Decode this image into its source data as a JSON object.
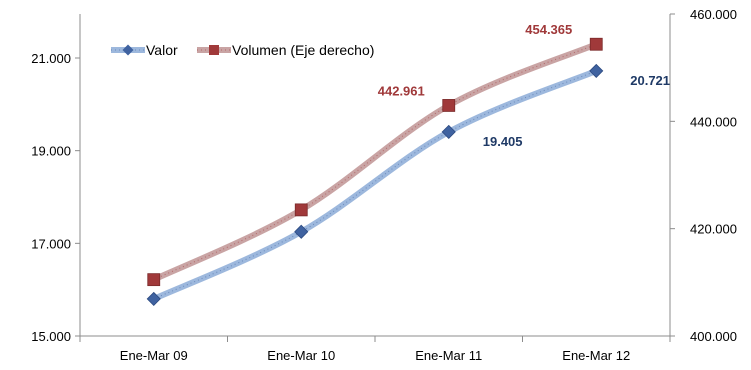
{
  "chart_data": {
    "type": "line",
    "categories": [
      "Ene-Mar 09",
      "Ene-Mar 10",
      "Ene-Mar 11",
      "Ene-Mar 12"
    ],
    "series": [
      {
        "name": "Valor",
        "axis": "left",
        "color": "#3f62a0",
        "line_color": "#9db8dd",
        "marker": "diamond",
        "values": [
          15800,
          17250,
          19405,
          20721
        ],
        "labels": [
          "",
          "",
          "19.405",
          "20.721"
        ]
      },
      {
        "name": "Volumen (Eje derecho)",
        "axis": "right",
        "color": "#a0393a",
        "line_color": "#c9a4a4",
        "marker": "square",
        "values": [
          410500,
          423500,
          442961,
          454365
        ],
        "labels": [
          "",
          "",
          "442.961",
          "454.365"
        ]
      }
    ],
    "y_left": {
      "min": 15000,
      "max": 21000,
      "ticks": [
        15000,
        17000,
        19000,
        21000
      ],
      "tick_labels": [
        "15.000",
        "17.000",
        "19.000",
        "21.000"
      ]
    },
    "y_right": {
      "min": 400000,
      "max": 460000,
      "ticks": [
        400000,
        420000,
        440000,
        460000
      ],
      "tick_labels": [
        "400.000",
        "420.000",
        "440.000",
        "460.000"
      ]
    },
    "grid": false,
    "legend_position": "top-left",
    "title": "",
    "xlabel": "",
    "ylabel": ""
  }
}
